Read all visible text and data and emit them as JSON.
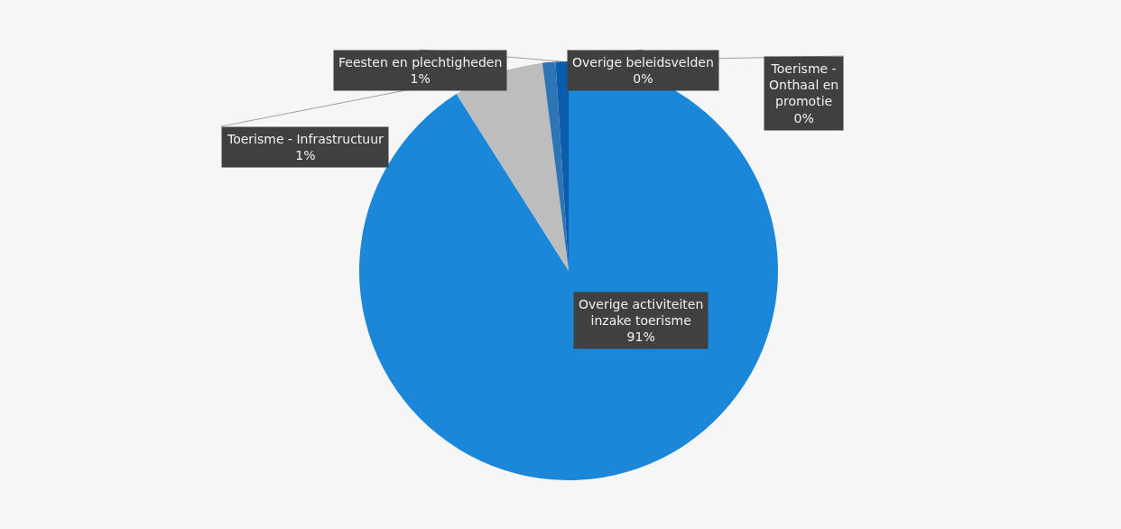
{
  "chart_data": {
    "type": "pie",
    "categories": [
      "Overige beleidsvelden",
      "Toerisme - Onthaal en promotie",
      "Overige activiteiten inzake toerisme",
      null,
      "Toerisme - Infrastructuur",
      "Feesten en plechtigheden"
    ],
    "values": [
      0,
      0,
      91,
      7,
      1,
      1
    ],
    "value_labels": [
      "0%",
      "0%",
      "91%",
      null,
      "1%",
      "1%"
    ],
    "colors": [
      "#1a6fc0",
      "#8fbfe6",
      "#1a87d9",
      "#bdbdbd",
      "#2e75b6",
      "#0b5cad"
    ]
  }
}
